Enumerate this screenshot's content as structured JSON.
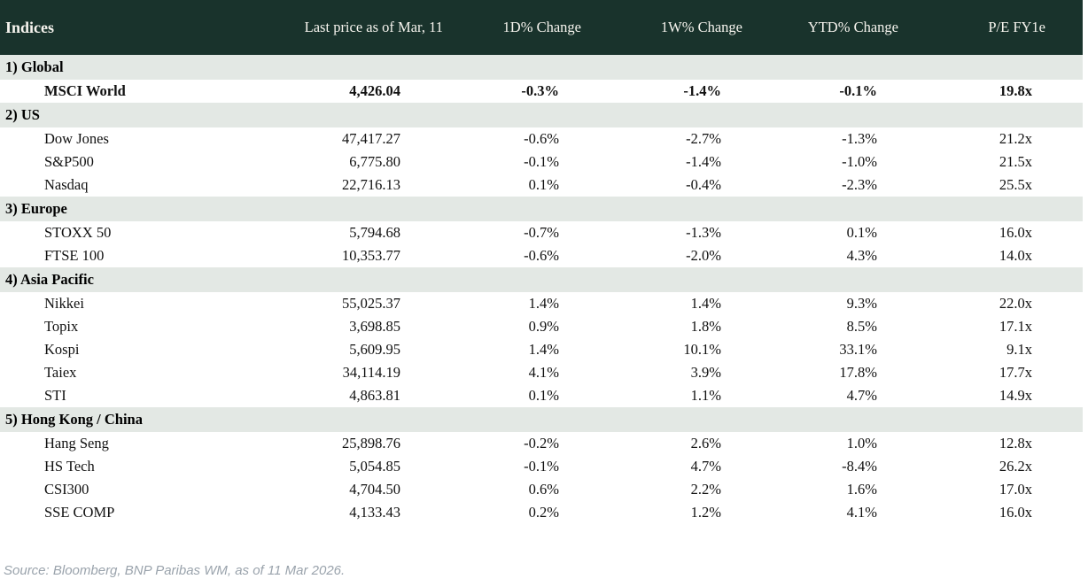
{
  "table": {
    "title": "Indices",
    "columns": [
      "Last price as of Mar, 11",
      "1D% Change",
      "1W% Change",
      "YTD% Change",
      "P/E FY1e"
    ],
    "sections": [
      {
        "label": "1) Global",
        "rows": [
          {
            "name": "MSCI World",
            "price": "4,426.04",
            "d1": "-0.3%",
            "w1": "-1.4%",
            "ytd": "-0.1%",
            "pe": "19.8x",
            "bold": true
          }
        ]
      },
      {
        "label": "2) US",
        "rows": [
          {
            "name": "Dow Jones",
            "price": "47,417.27",
            "d1": "-0.6%",
            "w1": "-2.7%",
            "ytd": "-1.3%",
            "pe": "21.2x",
            "bold": false
          },
          {
            "name": "S&P500",
            "price": "6,775.80",
            "d1": "-0.1%",
            "w1": "-1.4%",
            "ytd": "-1.0%",
            "pe": "21.5x",
            "bold": false
          },
          {
            "name": "Nasdaq",
            "price": "22,716.13",
            "d1": "0.1%",
            "w1": "-0.4%",
            "ytd": "-2.3%",
            "pe": "25.5x",
            "bold": false
          }
        ]
      },
      {
        "label": "3) Europe",
        "rows": [
          {
            "name": "STOXX 50",
            "price": "5,794.68",
            "d1": "-0.7%",
            "w1": "-1.3%",
            "ytd": "0.1%",
            "pe": "16.0x",
            "bold": false
          },
          {
            "name": "FTSE 100",
            "price": "10,353.77",
            "d1": "-0.6%",
            "w1": "-2.0%",
            "ytd": "4.3%",
            "pe": "14.0x",
            "bold": false
          }
        ]
      },
      {
        "label": "4) Asia Pacific",
        "rows": [
          {
            "name": "Nikkei",
            "price": "55,025.37",
            "d1": "1.4%",
            "w1": "1.4%",
            "ytd": "9.3%",
            "pe": "22.0x",
            "bold": false
          },
          {
            "name": "Topix",
            "price": "3,698.85",
            "d1": "0.9%",
            "w1": "1.8%",
            "ytd": "8.5%",
            "pe": "17.1x",
            "bold": false
          },
          {
            "name": "Kospi",
            "price": "5,609.95",
            "d1": "1.4%",
            "w1": "10.1%",
            "ytd": "33.1%",
            "pe": "9.1x",
            "bold": false
          },
          {
            "name": "Taiex",
            "price": "34,114.19",
            "d1": "4.1%",
            "w1": "3.9%",
            "ytd": "17.8%",
            "pe": "17.7x",
            "bold": false
          },
          {
            "name": "STI",
            "price": "4,863.81",
            "d1": "0.1%",
            "w1": "1.1%",
            "ytd": "4.7%",
            "pe": "14.9x",
            "bold": false
          }
        ]
      },
      {
        "label": "5) Hong Kong / China",
        "rows": [
          {
            "name": "Hang Seng",
            "price": "25,898.76",
            "d1": "-0.2%",
            "w1": "2.6%",
            "ytd": "1.0%",
            "pe": "12.8x",
            "bold": false
          },
          {
            "name": "HS Tech",
            "price": "5,054.85",
            "d1": "-0.1%",
            "w1": "4.7%",
            "ytd": "-8.4%",
            "pe": "26.2x",
            "bold": false
          },
          {
            "name": "CSI300",
            "price": "4,704.50",
            "d1": "0.6%",
            "w1": "2.2%",
            "ytd": "1.6%",
            "pe": "17.0x",
            "bold": false
          },
          {
            "name": "SSE COMP",
            "price": "4,133.43",
            "d1": "0.2%",
            "w1": "1.2%",
            "ytd": "4.1%",
            "pe": "16.0x",
            "bold": false
          }
        ]
      }
    ]
  },
  "colors": {
    "header_bg": "#19332c",
    "header_text": "#f6f4ee",
    "section_bg": "#e3e8e4",
    "negative": "#c00000",
    "positive": "#0a990a"
  },
  "footer": {
    "source": "Source: Bloomberg, BNP Paribas WM, as of 11 Mar 2026."
  }
}
